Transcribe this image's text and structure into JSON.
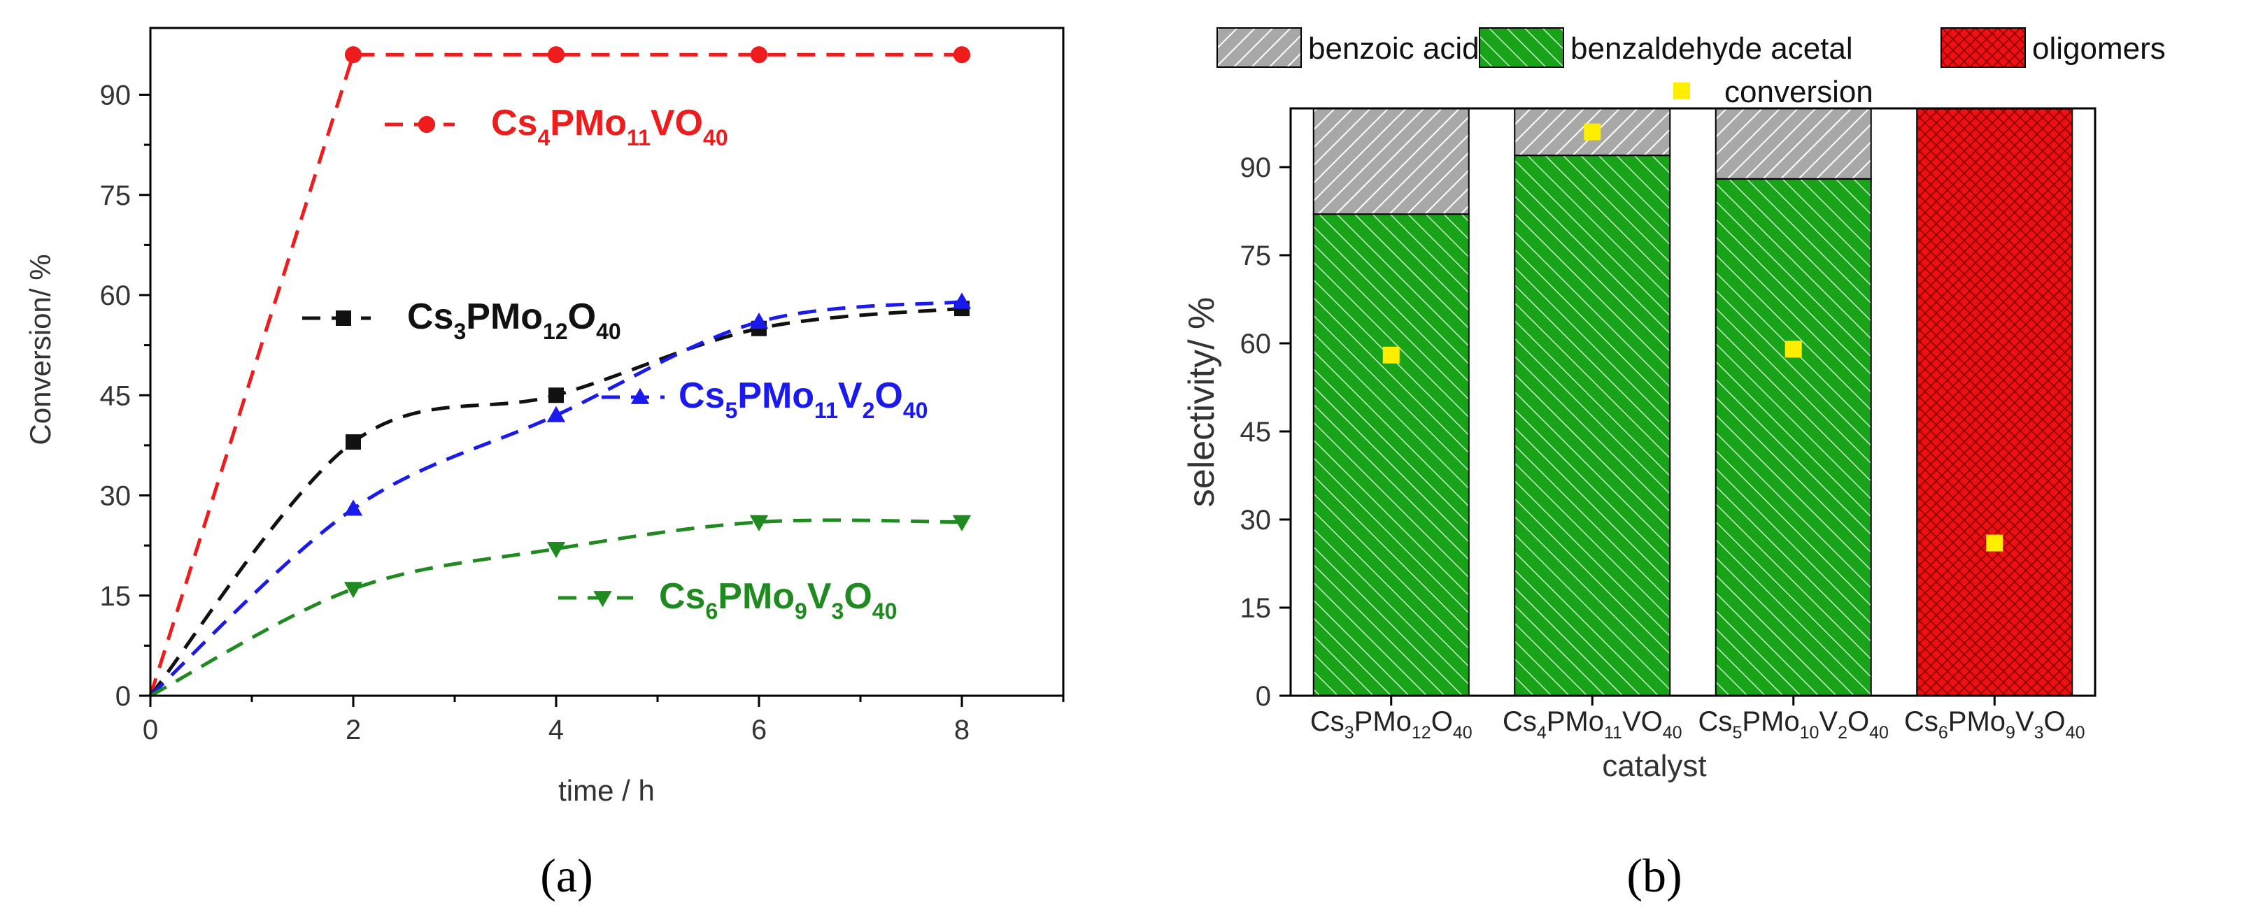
{
  "chart_data": [
    {
      "panel_label": "(a)",
      "type": "line",
      "xlabel": "time / h",
      "ylabel": "Conversion/ %",
      "xlim": [
        0,
        9
      ],
      "ylim": [
        0,
        100
      ],
      "xticks": [
        "0",
        "2",
        "4",
        "6",
        "8"
      ],
      "yticks": [
        "0",
        "15",
        "30",
        "45",
        "60",
        "75",
        "90"
      ],
      "xtick_values": [
        0,
        2,
        4,
        6,
        8
      ],
      "ytick_values": [
        0,
        15,
        30,
        45,
        60,
        75,
        90
      ],
      "series": [
        {
          "name": "Cs4PMo11VO40",
          "label_parts": [
            [
              "Cs",
              ""
            ],
            [
              "4",
              "sub"
            ],
            [
              "PMo",
              ""
            ],
            [
              "11",
              "sub"
            ],
            [
              "VO",
              ""
            ],
            [
              "40",
              "sub"
            ]
          ],
          "color": "#ee1c1c",
          "marker": "circle",
          "x": [
            0,
            2,
            4,
            6,
            8
          ],
          "y": [
            0,
            96,
            96,
            96,
            96
          ]
        },
        {
          "name": "Cs3PMo12O40",
          "label_parts": [
            [
              "Cs",
              ""
            ],
            [
              "3",
              "sub"
            ],
            [
              "PMo",
              ""
            ],
            [
              "12",
              "sub"
            ],
            [
              "O",
              ""
            ],
            [
              "40",
              "sub"
            ]
          ],
          "color": "#111111",
          "marker": "square",
          "x": [
            0,
            2,
            4,
            6,
            8
          ],
          "y": [
            0,
            38,
            45,
            55,
            58
          ]
        },
        {
          "name": "Cs5PMo11V2O40",
          "label_parts": [
            [
              "Cs",
              ""
            ],
            [
              "5",
              "sub"
            ],
            [
              "PMo",
              ""
            ],
            [
              "11",
              "sub"
            ],
            [
              "V",
              ""
            ],
            [
              "2",
              "sub"
            ],
            [
              "O",
              ""
            ],
            [
              "40",
              "sub"
            ]
          ],
          "color": "#1a1aee",
          "marker": "triangle-up",
          "x": [
            0,
            2,
            4,
            6,
            8
          ],
          "y": [
            0,
            28,
            42,
            56,
            59
          ]
        },
        {
          "name": "Cs6PMo9V3O40",
          "label_parts": [
            [
              "Cs",
              ""
            ],
            [
              "6",
              "sub"
            ],
            [
              "PMo",
              ""
            ],
            [
              "9",
              "sub"
            ],
            [
              "V",
              ""
            ],
            [
              "3",
              "sub"
            ],
            [
              "O",
              ""
            ],
            [
              "40",
              "sub"
            ]
          ],
          "color": "#1f8a1f",
          "marker": "triangle-down",
          "x": [
            0,
            2,
            4,
            6,
            8
          ],
          "y": [
            0,
            16,
            22,
            26,
            26
          ]
        }
      ]
    },
    {
      "panel_label": "(b)",
      "type": "bar",
      "stacked": true,
      "xlabel": "catalyst",
      "ylabel": "selectivity/ %",
      "ylim": [
        0,
        100
      ],
      "yticks": [
        "0",
        "15",
        "30",
        "45",
        "60",
        "75",
        "90"
      ],
      "ytick_values": [
        0,
        15,
        30,
        45,
        60,
        75,
        90
      ],
      "categories": [
        "Cs3PMo12O40",
        "Cs4PMo11VO40",
        "Cs5PMo10V2O40",
        "Cs6PMo9V3O40"
      ],
      "category_parts": [
        [
          [
            "Cs",
            ""
          ],
          [
            "3",
            "sub"
          ],
          [
            "PMo",
            ""
          ],
          [
            "12",
            "sub"
          ],
          [
            "O",
            ""
          ],
          [
            "40",
            "sub"
          ]
        ],
        [
          [
            "Cs",
            ""
          ],
          [
            "4",
            "sub"
          ],
          [
            "PMo",
            ""
          ],
          [
            "11",
            "sub"
          ],
          [
            "VO",
            ""
          ],
          [
            "40",
            "sub"
          ]
        ],
        [
          [
            "Cs",
            ""
          ],
          [
            "5",
            "sub"
          ],
          [
            "PMo",
            ""
          ],
          [
            "10",
            "sub"
          ],
          [
            "V",
            ""
          ],
          [
            "2",
            "sub"
          ],
          [
            "O",
            ""
          ],
          [
            "40",
            "sub"
          ]
        ],
        [
          [
            "Cs",
            ""
          ],
          [
            "6",
            "sub"
          ],
          [
            "PMo",
            ""
          ],
          [
            "9",
            "sub"
          ],
          [
            "V",
            ""
          ],
          [
            "3",
            "sub"
          ],
          [
            "O",
            ""
          ],
          [
            "40",
            "sub"
          ]
        ]
      ],
      "series": [
        {
          "name": "benzaldehyde acetal",
          "color": "#17a317",
          "pattern": "green-hatch",
          "values": [
            82,
            92,
            88,
            0
          ]
        },
        {
          "name": "benzoic acid",
          "color": "#a0a0a0",
          "pattern": "gray-hatch",
          "values": [
            18,
            8,
            12,
            0
          ]
        },
        {
          "name": "oligomers",
          "color": "#ee1111",
          "pattern": "red-crosshatch",
          "values": [
            0,
            0,
            0,
            100
          ]
        }
      ],
      "legend_order": [
        "benzoic acid",
        "benzaldehyde acetal",
        "oligomers"
      ],
      "conversion": {
        "name": "conversion",
        "color": "#ffee00",
        "marker": "square",
        "values": [
          58,
          96,
          59,
          26
        ]
      }
    }
  ]
}
